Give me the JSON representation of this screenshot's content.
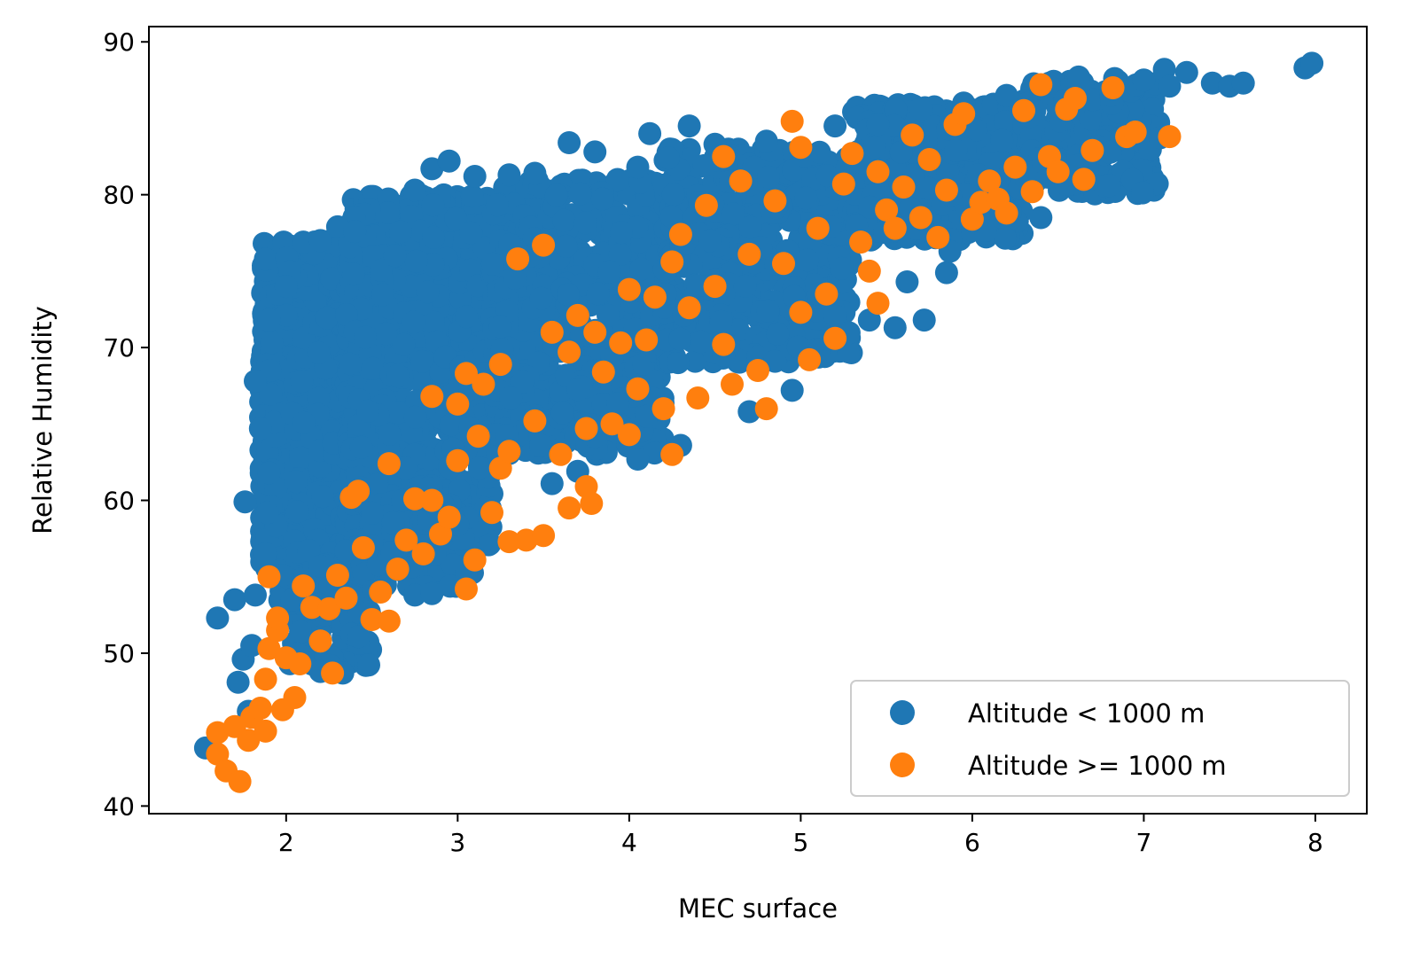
{
  "chart_data": {
    "type": "scatter",
    "xlabel": "MEC surface",
    "ylabel": "Relative Humidity",
    "xlim": [
      1.2,
      8.3
    ],
    "ylim": [
      39.5,
      91.0
    ],
    "xticks": [
      2,
      3,
      4,
      5,
      6,
      7,
      8
    ],
    "yticks": [
      40,
      50,
      60,
      70,
      80,
      90
    ],
    "grid": false,
    "legend_position": "lower-right",
    "colors": {
      "low": "#1f77b4",
      "high": "#ff7f0e"
    },
    "series": [
      {
        "name": "Altitude < 1000 m",
        "color": "#1f77b4",
        "dense_regions": [
          {
            "x": [
              1.85,
              2.35
            ],
            "y": [
              55,
              77
            ],
            "count": 700
          },
          {
            "x": [
              2.35,
              3.2
            ],
            "y": [
              57,
              80
            ],
            "count": 900
          },
          {
            "x": [
              3.2,
              4.2
            ],
            "y": [
              63,
              81
            ],
            "count": 700
          },
          {
            "x": [
              4.2,
              5.3
            ],
            "y": [
              69,
              83
            ],
            "count": 550
          },
          {
            "x": [
              5.3,
              6.3
            ],
            "y": [
              77,
              86
            ],
            "count": 380
          },
          {
            "x": [
              6.3,
              7.1
            ],
            "y": [
              80,
              87.5
            ],
            "count": 200
          },
          {
            "x": [
              1.95,
              2.5
            ],
            "y": [
              49,
              57
            ],
            "count": 120
          },
          {
            "x": [
              2.5,
              3.1
            ],
            "y": [
              54,
              60
            ],
            "count": 80
          }
        ],
        "points": [
          [
            1.53,
            43.8
          ],
          [
            1.6,
            52.3
          ],
          [
            1.7,
            53.5
          ],
          [
            1.72,
            48.1
          ],
          [
            1.75,
            49.6
          ],
          [
            1.78,
            46.2
          ],
          [
            1.8,
            50.5
          ],
          [
            1.82,
            53.8
          ],
          [
            1.82,
            67.8
          ],
          [
            1.85,
            64.7
          ],
          [
            1.88,
            56.5
          ],
          [
            1.9,
            71.8
          ],
          [
            1.9,
            61.8
          ],
          [
            1.76,
            59.9
          ],
          [
            2.1,
            76.9
          ],
          [
            2.2,
            77.0
          ],
          [
            2.3,
            77.9
          ],
          [
            2.4,
            77.6
          ],
          [
            2.2,
            48.8
          ],
          [
            2.33,
            48.7
          ],
          [
            1.95,
            73.5
          ],
          [
            2.0,
            74.0
          ],
          [
            2.75,
            80.3
          ],
          [
            2.85,
            81.7
          ],
          [
            2.95,
            82.2
          ],
          [
            3.1,
            81.2
          ],
          [
            3.3,
            81.3
          ],
          [
            3.45,
            81.4
          ],
          [
            3.65,
            83.4
          ],
          [
            3.8,
            82.8
          ],
          [
            4.05,
            81.8
          ],
          [
            4.12,
            84.0
          ],
          [
            4.35,
            84.5
          ],
          [
            4.5,
            83.3
          ],
          [
            4.8,
            83.5
          ],
          [
            5.2,
            84.5
          ],
          [
            5.45,
            84.6
          ],
          [
            5.7,
            85.6
          ],
          [
            5.95,
            86.0
          ],
          [
            6.2,
            86.5
          ],
          [
            6.45,
            87.3
          ],
          [
            6.62,
            87.7
          ],
          [
            6.83,
            87.6
          ],
          [
            7.0,
            87.5
          ],
          [
            7.12,
            88.2
          ],
          [
            7.25,
            88.0
          ],
          [
            7.15,
            87.1
          ],
          [
            7.4,
            87.3
          ],
          [
            7.5,
            87.1
          ],
          [
            7.58,
            87.3
          ],
          [
            7.94,
            88.3
          ],
          [
            7.98,
            88.6
          ],
          [
            6.8,
            80.6
          ],
          [
            6.4,
            78.5
          ],
          [
            6.0,
            78.3
          ],
          [
            5.85,
            74.9
          ],
          [
            5.87,
            76.3
          ],
          [
            5.62,
            74.3
          ],
          [
            5.55,
            71.3
          ],
          [
            5.72,
            71.8
          ],
          [
            5.4,
            71.8
          ],
          [
            5.1,
            73.5
          ],
          [
            4.95,
            67.2
          ],
          [
            4.75,
            69.4
          ],
          [
            4.85,
            69.1
          ],
          [
            4.7,
            65.8
          ],
          [
            4.3,
            63.6
          ],
          [
            4.05,
            62.7
          ],
          [
            3.97,
            64.4
          ],
          [
            3.7,
            61.9
          ],
          [
            3.55,
            61.1
          ],
          [
            3.0,
            58.4
          ],
          [
            2.75,
            53.8
          ],
          [
            2.85,
            53.9
          ],
          [
            2.65,
            55.5
          ],
          [
            3.05,
            55.2
          ],
          [
            4.55,
            69.5
          ],
          [
            4.1,
            65.5
          ]
        ]
      },
      {
        "name": "Altitude >= 1000 m",
        "color": "#ff7f0e",
        "points": [
          [
            1.6,
            44.8
          ],
          [
            1.6,
            43.4
          ],
          [
            1.65,
            42.3
          ],
          [
            1.7,
            45.2
          ],
          [
            1.73,
            41.6
          ],
          [
            1.78,
            44.3
          ],
          [
            1.8,
            45.8
          ],
          [
            1.85,
            46.4
          ],
          [
            1.88,
            44.9
          ],
          [
            1.88,
            48.3
          ],
          [
            1.9,
            50.3
          ],
          [
            1.95,
            51.5
          ],
          [
            1.9,
            55.0
          ],
          [
            1.95,
            52.3
          ],
          [
            2.0,
            49.7
          ],
          [
            1.98,
            46.3
          ],
          [
            2.05,
            47.1
          ],
          [
            2.08,
            49.3
          ],
          [
            2.1,
            54.4
          ],
          [
            2.15,
            53.0
          ],
          [
            2.2,
            50.8
          ],
          [
            2.25,
            52.9
          ],
          [
            2.27,
            48.7
          ],
          [
            2.3,
            55.1
          ],
          [
            2.35,
            53.6
          ],
          [
            2.38,
            60.2
          ],
          [
            2.42,
            60.6
          ],
          [
            2.45,
            56.9
          ],
          [
            2.5,
            52.2
          ],
          [
            2.55,
            54.0
          ],
          [
            2.6,
            52.1
          ],
          [
            2.6,
            62.4
          ],
          [
            2.65,
            55.5
          ],
          [
            2.7,
            57.4
          ],
          [
            2.75,
            60.1
          ],
          [
            2.8,
            56.5
          ],
          [
            2.85,
            60.0
          ],
          [
            2.85,
            66.8
          ],
          [
            2.9,
            57.8
          ],
          [
            2.95,
            58.9
          ],
          [
            3.0,
            62.6
          ],
          [
            3.0,
            66.3
          ],
          [
            3.05,
            68.3
          ],
          [
            3.05,
            54.2
          ],
          [
            3.1,
            56.1
          ],
          [
            3.12,
            64.2
          ],
          [
            3.15,
            67.6
          ],
          [
            3.2,
            59.2
          ],
          [
            3.25,
            62.1
          ],
          [
            3.25,
            68.9
          ],
          [
            3.3,
            57.3
          ],
          [
            3.3,
            63.2
          ],
          [
            3.35,
            75.8
          ],
          [
            3.4,
            57.4
          ],
          [
            3.45,
            65.2
          ],
          [
            3.5,
            76.7
          ],
          [
            3.5,
            57.7
          ],
          [
            3.55,
            71.0
          ],
          [
            3.6,
            63.0
          ],
          [
            3.65,
            59.5
          ],
          [
            3.65,
            69.7
          ],
          [
            3.7,
            72.1
          ],
          [
            3.75,
            64.7
          ],
          [
            3.75,
            60.9
          ],
          [
            3.78,
            59.8
          ],
          [
            3.8,
            71.0
          ],
          [
            3.85,
            68.4
          ],
          [
            3.9,
            65.0
          ],
          [
            3.95,
            70.3
          ],
          [
            4.0,
            64.3
          ],
          [
            4.0,
            73.8
          ],
          [
            4.05,
            67.3
          ],
          [
            4.1,
            70.5
          ],
          [
            4.15,
            73.3
          ],
          [
            4.2,
            66.0
          ],
          [
            4.25,
            63.0
          ],
          [
            4.25,
            75.6
          ],
          [
            4.3,
            77.4
          ],
          [
            4.35,
            72.6
          ],
          [
            4.4,
            66.7
          ],
          [
            4.45,
            79.3
          ],
          [
            4.5,
            74.0
          ],
          [
            4.55,
            82.5
          ],
          [
            4.55,
            70.2
          ],
          [
            4.6,
            67.6
          ],
          [
            4.65,
            80.9
          ],
          [
            4.7,
            76.1
          ],
          [
            4.75,
            68.5
          ],
          [
            4.8,
            66.0
          ],
          [
            4.85,
            79.6
          ],
          [
            4.9,
            75.5
          ],
          [
            4.95,
            84.8
          ],
          [
            5.0,
            72.3
          ],
          [
            5.0,
            83.1
          ],
          [
            5.05,
            69.2
          ],
          [
            5.1,
            77.8
          ],
          [
            5.15,
            73.5
          ],
          [
            5.2,
            70.6
          ],
          [
            5.25,
            80.7
          ],
          [
            5.3,
            82.7
          ],
          [
            5.35,
            76.9
          ],
          [
            5.4,
            75.0
          ],
          [
            5.45,
            72.9
          ],
          [
            5.45,
            81.5
          ],
          [
            5.5,
            79.0
          ],
          [
            5.55,
            77.8
          ],
          [
            5.6,
            80.5
          ],
          [
            5.65,
            83.9
          ],
          [
            5.7,
            78.5
          ],
          [
            5.75,
            82.3
          ],
          [
            5.8,
            77.2
          ],
          [
            5.85,
            80.3
          ],
          [
            5.9,
            84.6
          ],
          [
            5.95,
            85.3
          ],
          [
            6.0,
            78.4
          ],
          [
            6.05,
            79.5
          ],
          [
            6.1,
            80.9
          ],
          [
            6.15,
            79.7
          ],
          [
            6.2,
            78.8
          ],
          [
            6.25,
            81.8
          ],
          [
            6.3,
            85.5
          ],
          [
            6.35,
            80.2
          ],
          [
            6.4,
            87.2
          ],
          [
            6.45,
            82.5
          ],
          [
            6.5,
            81.5
          ],
          [
            6.55,
            85.6
          ],
          [
            6.6,
            86.3
          ],
          [
            6.65,
            81.0
          ],
          [
            6.7,
            82.9
          ],
          [
            6.82,
            87.0
          ],
          [
            6.9,
            83.8
          ],
          [
            6.95,
            84.1
          ],
          [
            7.15,
            83.8
          ]
        ]
      }
    ]
  }
}
